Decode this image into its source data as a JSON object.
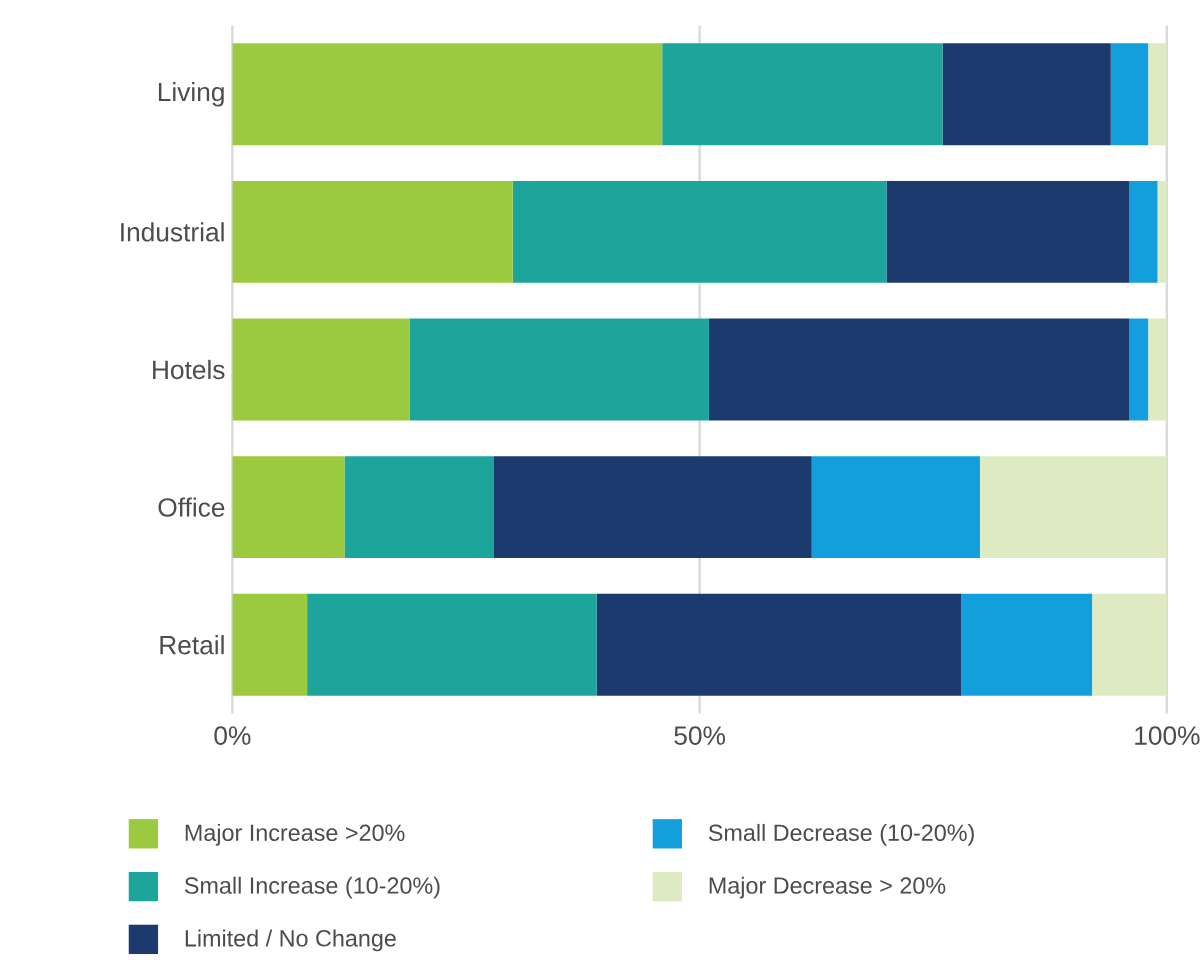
{
  "chart_data": {
    "type": "bar",
    "orientation": "horizontal",
    "stacked": true,
    "categories": [
      "Living",
      "Industrial",
      "Hotels",
      "Office",
      "Retail"
    ],
    "series": [
      {
        "name": "Major Increase >20%",
        "color": "#9bca3e",
        "values": [
          46,
          30,
          19,
          12,
          8
        ]
      },
      {
        "name": "Small Increase (10-20%)",
        "color": "#1ea59b",
        "values": [
          30,
          40,
          32,
          16,
          31
        ]
      },
      {
        "name": "Limited / No Change",
        "color": "#1d3a6f",
        "values": [
          18,
          26,
          45,
          34,
          39
        ]
      },
      {
        "name": "Small Decrease (10-20%)",
        "color": "#139fdb",
        "values": [
          4,
          3,
          2,
          18,
          14
        ]
      },
      {
        "name": "Major Decrease > 20%",
        "color": "#deeac2",
        "values": [
          2,
          1,
          2,
          20,
          8
        ]
      }
    ],
    "xlim": [
      0,
      100
    ],
    "xticks": [
      {
        "value": 0,
        "label": "0%"
      },
      {
        "value": 50,
        "label": "50%"
      },
      {
        "value": 100,
        "label": "100%"
      }
    ],
    "grid": "x",
    "legend": "bottom"
  }
}
